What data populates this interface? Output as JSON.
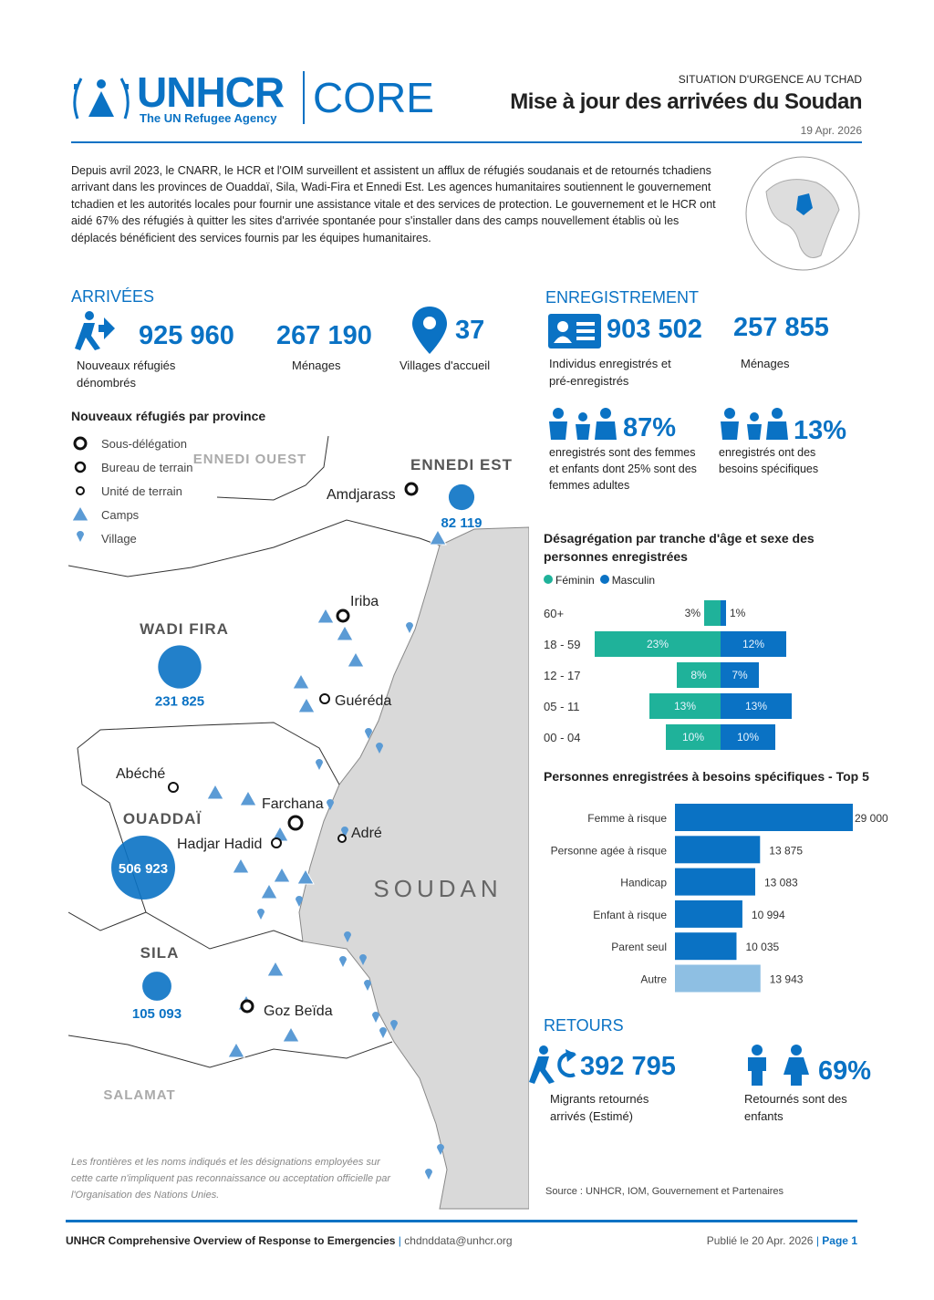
{
  "header": {
    "org": "UNHCR",
    "tagline": "The UN Refugee Agency",
    "product": "CORE",
    "kicker": "SITUATION D'URGENCE AU TCHAD",
    "title": "Mise à jour des arrivées du Soudan",
    "date": "19 Apr. 2026"
  },
  "intro": "Depuis avril 2023, le CNARR, le HCR et l'OIM surveillent et assistent un afflux de réfugiés soudanais et de retournés tchadiens arrivant dans les provinces de Ouaddaï, Sila, Wadi-Fira et Ennedi Est. Les agences humanitaires soutiennent le gouvernement tchadien et les autorités locales pour fournir une assistance vitale et des services de protection. Le gouvernement et le HCR ont aidé 67% des réfugiés à quitter les sites d'arrivée spontanée pour s'installer dans des camps nouvellement établis où les déplacés bénéficient des services fournis par les équipes humanitaires.",
  "arrivals": {
    "title": "ARRIVÉES",
    "stats": [
      {
        "value": "925 960",
        "label": "Nouveaux réfugiés dénombrés"
      },
      {
        "value": "267 190",
        "label": "Ménages"
      },
      {
        "value": "37",
        "label": "Villages d'accueil"
      }
    ]
  },
  "registration": {
    "title": "ENREGISTREMENT",
    "stats": [
      {
        "value": "903 502",
        "label": "Individus enregistrés et pré-enregistrés"
      },
      {
        "value": "257 855",
        "label": "Ménages"
      }
    ],
    "highlights": [
      {
        "value": "87%",
        "label": "enregistrés sont des femmes et enfants dont 25% sont des femmes adultes"
      },
      {
        "value": "13%",
        "label": "enregistrés ont des besoins spécifiques"
      }
    ]
  },
  "map": {
    "title": "Nouveaux réfugiés par province",
    "legend": [
      "Sous-délégation",
      "Bureau de terrain",
      "Unité de terrain",
      "Camps",
      "Village"
    ],
    "regions": [
      "ENNEDI OUEST",
      "ENNEDI EST",
      "WADI FIRA",
      "OUADDAÏ",
      "SILA",
      "SALAMAT"
    ],
    "places": [
      "Amdjarass",
      "Iriba",
      "Guéréda",
      "Abéché",
      "Farchana",
      "Adré",
      "Hadjar Hadid",
      "Goz Beïda"
    ],
    "provinces": [
      {
        "value": 82119,
        "label": "82 119"
      },
      {
        "value": 231825,
        "label": "231 825"
      },
      {
        "value": 506923,
        "label": "506 923"
      },
      {
        "value": 105093,
        "label": "105 093"
      }
    ],
    "country": "SOUDAN",
    "disclaimer": "Les frontières et les noms indiqués et les désignations employées sur cette carte n'impliquent pas reconnaissance ou acceptation officielle par l'Organisation des Nations Unies."
  },
  "age_chart": {
    "type": "bar",
    "title": "Désagrégation par tranche d'âge et sexe des personnes enregistrées",
    "categories": [
      "60+",
      "18 - 59",
      "12 - 17",
      "05 - 11",
      "00 - 04"
    ],
    "series": [
      {
        "name": "Féminin",
        "color": "#1fb29a",
        "values": [
          3,
          23,
          8,
          13,
          10
        ],
        "value_labels": [
          "3%",
          "23%",
          "8%",
          "13%",
          "10%"
        ]
      },
      {
        "name": "Masculin",
        "color": "#0a72c4",
        "values": [
          1,
          12,
          7,
          13,
          10
        ],
        "value_labels": [
          "1%",
          "12%",
          "7%",
          "13%",
          "10%"
        ]
      }
    ]
  },
  "needs_chart": {
    "type": "bar",
    "title": "Personnes enregistrées à besoins spécifiques - Top 5",
    "categories": [
      "Femme à risque",
      "Personne agée à risque",
      "Handicap",
      "Enfant à risque",
      "Parent seul",
      "Autre"
    ],
    "values": [
      29000,
      13875,
      13083,
      10994,
      10035,
      13943
    ],
    "value_labels": [
      "29 000",
      "13 875",
      "13 083",
      "10 994",
      "10 035",
      "13 943"
    ],
    "colors": [
      "#0a72c4",
      "#0a72c4",
      "#0a72c4",
      "#0a72c4",
      "#0a72c4",
      "#8ebfe3"
    ]
  },
  "returns": {
    "title": "RETOURS",
    "stats": [
      {
        "value": "392 795",
        "label": "Migrants retournés arrivés (Estimé)"
      },
      {
        "value": "69%",
        "label": "Retournés sont des enfants"
      }
    ]
  },
  "source": "Source : UNHCR, IOM, Gouvernement et Partenaires",
  "footer": {
    "left": "UNHCR Comprehensive Overview of Response to Emergencies",
    "email": "chdnddata@unhcr.org",
    "published": "Publié le 20 Apr. 2026",
    "page": "Page 1"
  }
}
